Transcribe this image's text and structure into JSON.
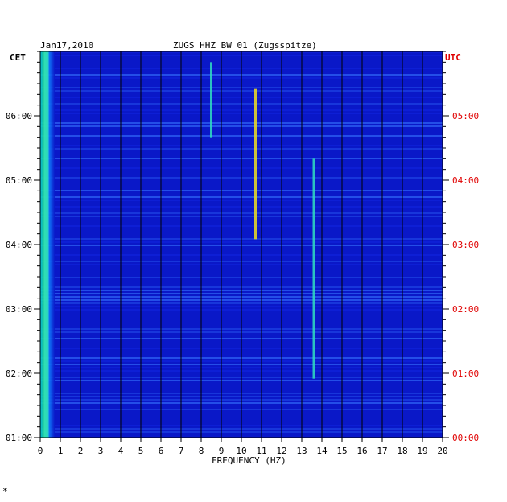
{
  "chart_data": {
    "type": "heatmap",
    "title_date": "Jan17,2010",
    "title_station": "ZUGS HHZ BW 01 (Zugsspitze)",
    "xlabel": "FREQUENCY (HZ)",
    "xlim": [
      0,
      20
    ],
    "x_ticks": [
      "0",
      "1",
      "2",
      "3",
      "4",
      "5",
      "6",
      "7",
      "8",
      "9",
      "10",
      "11",
      "12",
      "13",
      "14",
      "15",
      "16",
      "17",
      "18",
      "19",
      "20"
    ],
    "left_axis_label": "CET",
    "right_axis_label": "UTC",
    "left_ticks": [
      "06:00",
      "05:00",
      "04:00",
      "03:00",
      "02:00",
      "01:00"
    ],
    "right_ticks": [
      "05:00",
      "04:00",
      "03:00",
      "02:00",
      "01:00",
      "00:00"
    ],
    "grid": true,
    "colors": {
      "background": "#0a18c8",
      "grid": "#000000",
      "utc_labels": "#e00000"
    },
    "features": [
      {
        "name": "",
        "freq_hz": 10.7,
        "time_cet": [
          "04:05",
          "06:25"
        ]
      },
      {
        "name": "",
        "freq_hz": 8.5,
        "time_cet": [
          "05:40",
          "06:50"
        ]
      },
      {
        "name": "",
        "freq_hz": 13.6,
        "time_cet": [
          "01:55",
          "05:20"
        ]
      },
      {
        "name": "",
        "freq_hz": 0.3,
        "time_cet": [
          "01:00",
          "07:00"
        ]
      }
    ]
  },
  "corner_mark": "*"
}
